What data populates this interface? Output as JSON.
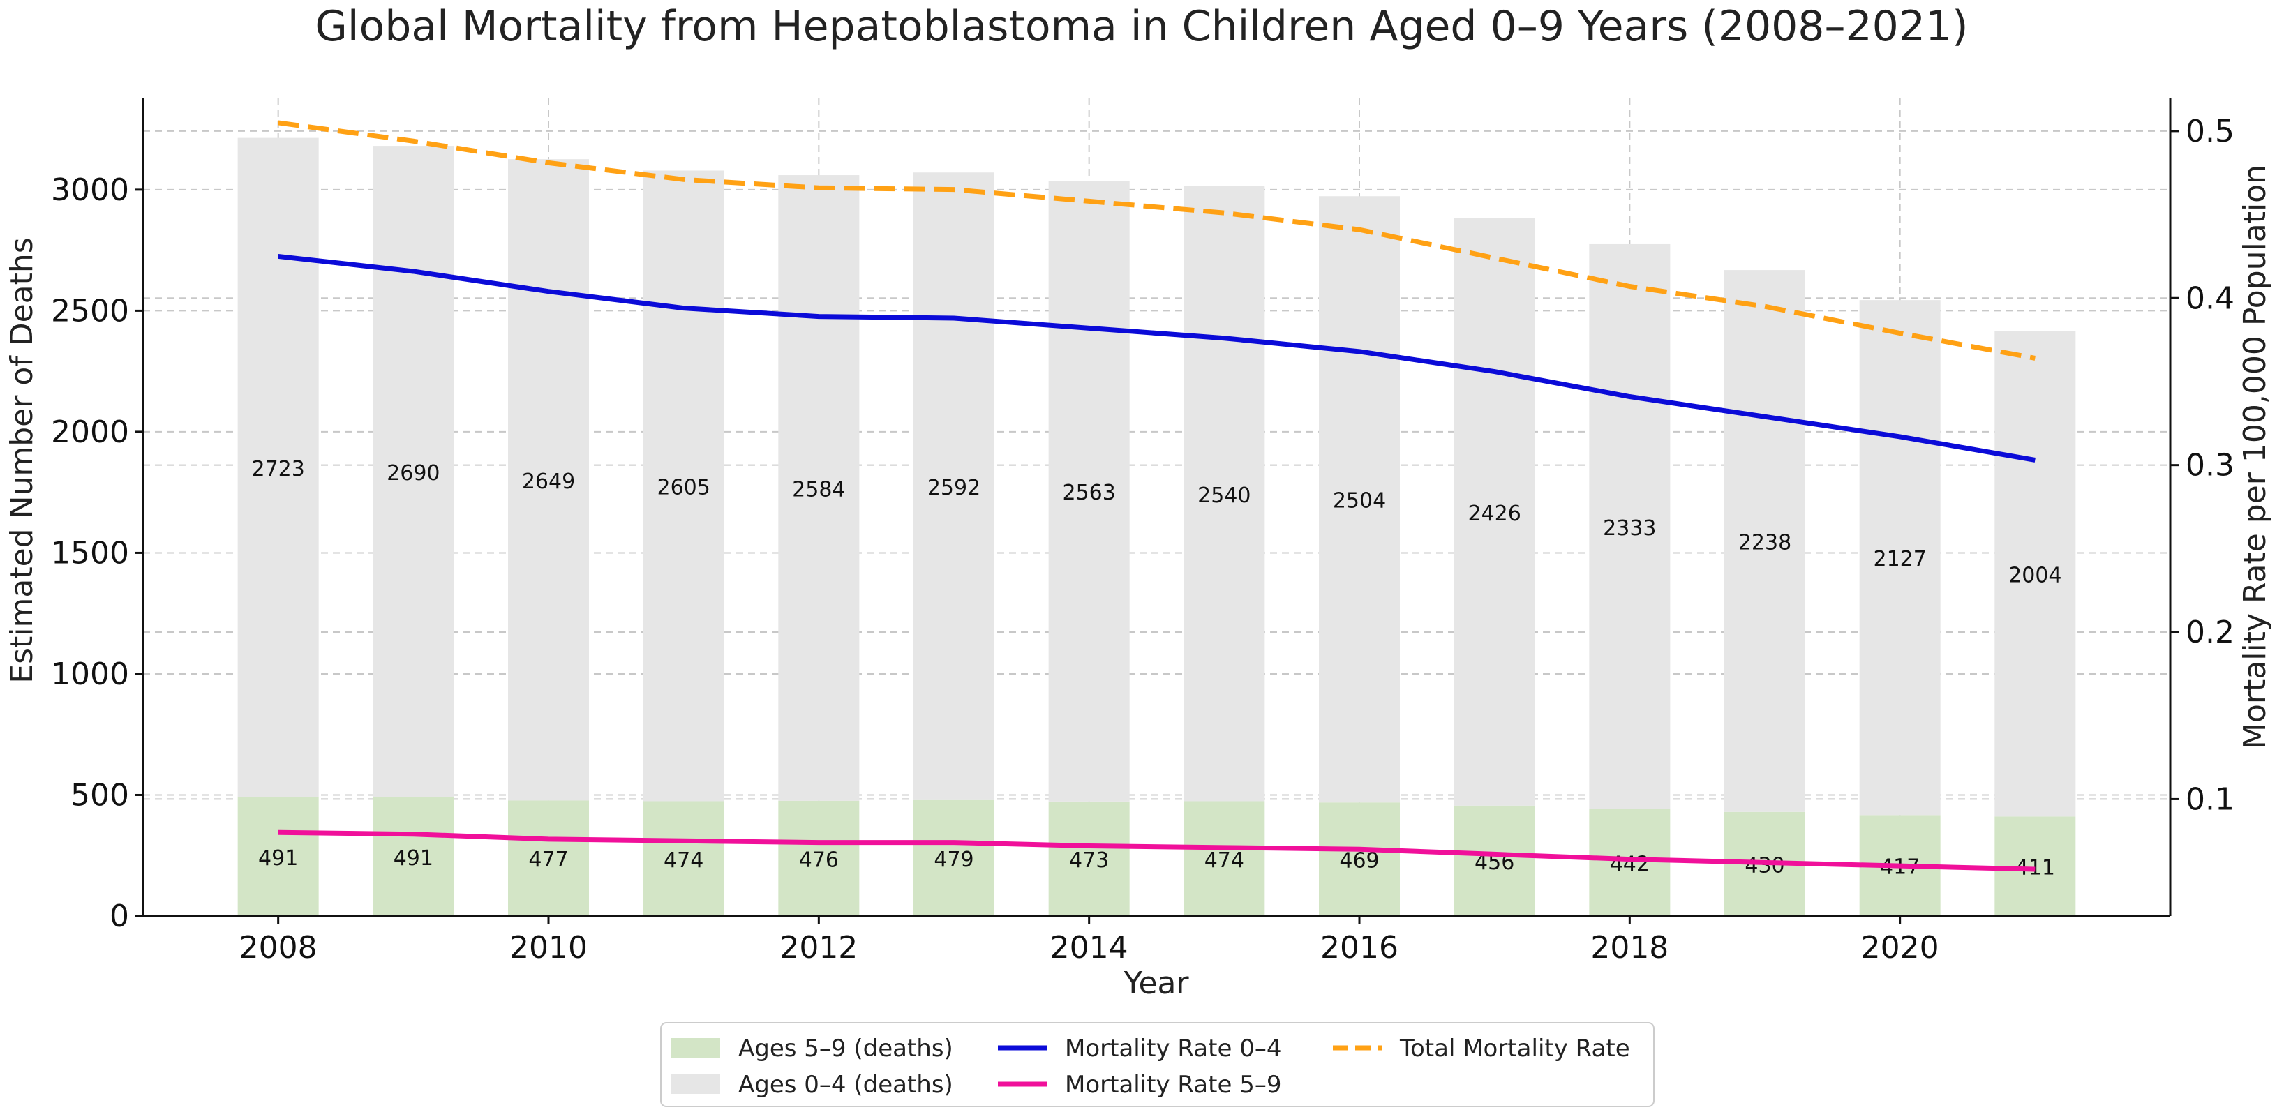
{
  "chart_data": {
    "type": "bar",
    "title": "Global Mortality from Hepatoblastoma in Children Aged 0–9 Years (2008–2021)",
    "xlabel": "Year",
    "ylabel": "Estimated Number of Deaths",
    "y2label": "Mortality Rate per 100,000 Population",
    "ylim": [
      0,
      3380
    ],
    "y2lim": [
      0.03,
      0.52
    ],
    "xlim": [
      2007.0,
      2022.0
    ],
    "x_ticks": [
      2008,
      2010,
      2012,
      2014,
      2016,
      2018,
      2020
    ],
    "y_ticks": [
      0,
      500,
      1000,
      1500,
      2000,
      2500,
      3000
    ],
    "y2_ticks": [
      0.1,
      0.2,
      0.3,
      0.4,
      0.5
    ],
    "grid": true,
    "legend_position": "bottom-center",
    "categories": [
      2008,
      2009,
      2010,
      2011,
      2012,
      2013,
      2014,
      2015,
      2016,
      2017,
      2018,
      2019,
      2020,
      2021
    ],
    "bar_series": [
      {
        "name": "Ages 5–9 (deaths)",
        "color": "#d3e5c6",
        "values": [
          491,
          491,
          477,
          474,
          476,
          479,
          473,
          474,
          469,
          456,
          442,
          430,
          417,
          411
        ]
      },
      {
        "name": "Ages 0–4 (deaths)",
        "color": "#e6e6e6",
        "values": [
          2723,
          2690,
          2649,
          2605,
          2584,
          2592,
          2563,
          2540,
          2504,
          2426,
          2333,
          2238,
          2127,
          2004
        ]
      }
    ],
    "line_series": [
      {
        "name": "Mortality Rate 0–4",
        "color": "#0b0bd8",
        "dash": "solid",
        "values": [
          0.425,
          0.416,
          0.404,
          0.394,
          0.389,
          0.388,
          0.382,
          0.376,
          0.368,
          0.356,
          0.341,
          0.329,
          0.317,
          0.303
        ]
      },
      {
        "name": "Mortality Rate 5–9",
        "color": "#f0109a",
        "dash": "solid",
        "values": [
          0.08,
          0.079,
          0.076,
          0.075,
          0.074,
          0.074,
          0.072,
          0.071,
          0.07,
          0.067,
          0.064,
          0.062,
          0.06,
          0.058
        ]
      },
      {
        "name": "Total Mortality Rate",
        "color": "#ffa114",
        "dash": "dashed",
        "values": [
          0.505,
          0.494,
          0.481,
          0.471,
          0.466,
          0.465,
          0.458,
          0.451,
          0.441,
          0.424,
          0.407,
          0.395,
          0.379,
          0.364
        ]
      }
    ],
    "legend": [
      {
        "label": "Ages 5–9 (deaths)",
        "kind": "patch",
        "color": "#d3e5c6"
      },
      {
        "label": "Ages 0–4 (deaths)",
        "kind": "patch",
        "color": "#e6e6e6"
      },
      {
        "label": "Mortality Rate 0–4",
        "kind": "line",
        "color": "#0b0bd8"
      },
      {
        "label": "Mortality Rate 5–9",
        "kind": "line",
        "color": "#f0109a"
      },
      {
        "label": "Total Mortality Rate",
        "kind": "dashed",
        "color": "#ffa114"
      }
    ]
  }
}
